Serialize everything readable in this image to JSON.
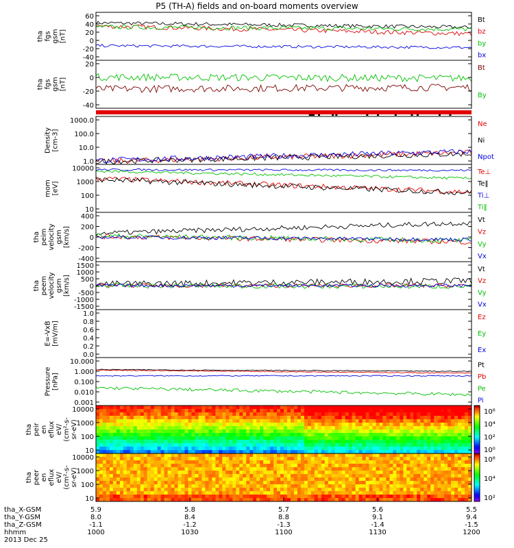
{
  "title": "P5 (TH-A) fields and on-board moments overview",
  "time_axis": {
    "rows": [
      {
        "label": "tha_X-GSM",
        "values": [
          "5.9",
          "5.8",
          "5.7",
          "5.6",
          "5.5"
        ]
      },
      {
        "label": "tha_Y-GSM",
        "values": [
          "8.0",
          "8.4",
          "8.8",
          "9.1",
          "9.4"
        ]
      },
      {
        "label": "tha_Z-GSM",
        "values": [
          "-1.1",
          "-1.2",
          "-1.3",
          "-1.4",
          "-1.5"
        ]
      },
      {
        "label": "hhmm",
        "values": [
          "1000",
          "1030",
          "1100",
          "1130",
          "1200"
        ]
      }
    ],
    "date": "2013 Dec 25"
  },
  "colorbars": {
    "top_ticks": [
      "10⁶",
      "10⁴",
      "10²",
      "10⁰"
    ],
    "bottom_ticks": [
      "10⁶",
      "10⁴",
      "10²"
    ]
  },
  "chart_data": [
    {
      "type": "line",
      "ylabel": [
        "tha",
        "fgs",
        "gsm",
        "[nT]"
      ],
      "yticks": [
        "60",
        "40",
        "20",
        "0",
        "-20",
        "-40"
      ],
      "ylim": [
        -40,
        65
      ],
      "legend": [
        {
          "name": "Bt",
          "color": "#000000"
        },
        {
          "name": "bz",
          "color": "#e00000"
        },
        {
          "name": "by",
          "color": "#00c000"
        },
        {
          "name": "bx",
          "color": "#0000e0"
        }
      ],
      "series": [
        {
          "name": "Bt",
          "start": 42,
          "end": 32,
          "noise": 4
        },
        {
          "name": "bz",
          "start": 35,
          "end": 18,
          "noise": 5
        },
        {
          "name": "by",
          "start": 33,
          "end": 28,
          "noise": 5
        },
        {
          "name": "bx",
          "start": -8,
          "end": -12,
          "noise": 3
        }
      ]
    },
    {
      "type": "line",
      "ylabel": [
        "tha",
        "fgs",
        "gsm",
        "[nT]"
      ],
      "yticks": [
        "20",
        "0",
        "-20",
        "-40"
      ],
      "ylim": [
        -50,
        30
      ],
      "legend": [
        {
          "name": "Bt",
          "color": "#7a0000"
        },
        {
          "name": "By",
          "color": "#00c000"
        }
      ],
      "series": [
        {
          "name": "Bt",
          "start": -18,
          "end": -15,
          "noise": 6
        },
        {
          "name": "By",
          "start": 2,
          "end": 0,
          "noise": 6
        }
      ]
    },
    {
      "type": "bar",
      "ylabel": [],
      "yticks": [],
      "legend": [],
      "series": []
    },
    {
      "type": "line",
      "ylabel": [
        "Density",
        "[cm-3]"
      ],
      "yticks": [
        "1000.0",
        "100.0",
        "10.0",
        "1.0"
      ],
      "ylim": [
        0.3,
        1500
      ],
      "log": true,
      "legend": [
        {
          "name": "Ne",
          "color": "#e00000"
        },
        {
          "name": "Ni",
          "color": "#000000"
        },
        {
          "name": "Npot",
          "color": "#0000e0"
        }
      ],
      "series": [
        {
          "name": "Ne",
          "start": 0.5,
          "end": 2.5,
          "noise": 0.5
        },
        {
          "name": "Ni",
          "start": 0.5,
          "end": 2.0,
          "noise": 0.5
        },
        {
          "name": "Npot",
          "start": 0.6,
          "end": 3.0,
          "noise": 0.5
        }
      ]
    },
    {
      "type": "line",
      "ylabel": [
        "mom",
        "[eV]"
      ],
      "yticks": [
        "10000",
        "1000",
        "100",
        "10"
      ],
      "ylim": [
        10,
        12000
      ],
      "log": true,
      "legend": [
        {
          "name": "Te⊥",
          "color": "#e00000"
        },
        {
          "name": "Te‖",
          "color": "#000000"
        },
        {
          "name": "Ti⊥",
          "color": "#0000e0"
        },
        {
          "name": "Ti‖",
          "color": "#00c000"
        }
      ],
      "series": [
        {
          "name": "Te⊥",
          "start": 1500,
          "end": 200,
          "noise": 0.4
        },
        {
          "name": "Te‖",
          "start": 1300,
          "end": 180,
          "noise": 0.4
        },
        {
          "name": "Ti⊥",
          "start": 5500,
          "end": 5000,
          "noise": 0.15
        },
        {
          "name": "Ti‖",
          "start": 4500,
          "end": 1500,
          "noise": 0.2
        }
      ]
    },
    {
      "type": "line",
      "ylabel": [
        "tha",
        "peim",
        "velocity",
        "gsm",
        "[km/s]"
      ],
      "yticks": [
        "400",
        "200",
        "0",
        "-200",
        "-400"
      ],
      "ylim": [
        -400,
        400
      ],
      "legend": [
        {
          "name": "Vt",
          "color": "#000000"
        },
        {
          "name": "Vz",
          "color": "#e00000"
        },
        {
          "name": "Vy",
          "color": "#00c000"
        },
        {
          "name": "Vx",
          "color": "#0000e0"
        }
      ],
      "series": [
        {
          "name": "Vt",
          "start": 60,
          "end": 230,
          "noise": 40
        },
        {
          "name": "Vz",
          "start": 10,
          "end": -80,
          "noise": 40
        },
        {
          "name": "Vy",
          "start": 20,
          "end": -60,
          "noise": 40
        },
        {
          "name": "Vx",
          "start": 0,
          "end": -40,
          "noise": 30
        }
      ]
    },
    {
      "type": "line",
      "ylabel": [
        "tha",
        "peem",
        "velocity",
        "gsm",
        "[km/s]"
      ],
      "yticks": [
        "1500",
        "1000",
        "500",
        "0",
        "-500",
        "-1000",
        "-1500"
      ],
      "ylim": [
        -1500,
        1500
      ],
      "legend": [
        {
          "name": "Vt",
          "color": "#000000"
        },
        {
          "name": "Vz",
          "color": "#e00000"
        },
        {
          "name": "Vy",
          "color": "#00c000"
        },
        {
          "name": "Vx",
          "color": "#0000e0"
        }
      ],
      "series": [
        {
          "name": "Vt",
          "start": 100,
          "end": 300,
          "noise": 200
        },
        {
          "name": "Vz",
          "start": 0,
          "end": 0,
          "noise": 120
        },
        {
          "name": "Vy",
          "start": 0,
          "end": -50,
          "noise": 150
        },
        {
          "name": "Vx",
          "start": 0,
          "end": 0,
          "noise": 100
        }
      ]
    },
    {
      "type": "line",
      "ylabel": [
        "E=-VxB",
        "[mV/m]"
      ],
      "yticks": [
        "1.0",
        "0.8",
        "0.6",
        "0.4",
        "0.2",
        "0.0"
      ],
      "ylim": [
        0,
        1
      ],
      "legend": [
        {
          "name": "Ez",
          "color": "#e00000"
        },
        {
          "name": "Ey",
          "color": "#00c000"
        },
        {
          "name": "Ex",
          "color": "#0000e0"
        }
      ],
      "series": []
    },
    {
      "type": "line",
      "ylabel": [
        "Pressure",
        "[nPa]"
      ],
      "yticks": [
        "10.000",
        "1.000",
        "0.100",
        "0.010",
        "0.001"
      ],
      "ylim": [
        0.001,
        10
      ],
      "log": true,
      "legend": [
        {
          "name": "Pt",
          "color": "#000000"
        },
        {
          "name": "Pb",
          "color": "#e00000"
        },
        {
          "name": "Pe",
          "color": "#00c000"
        },
        {
          "name": "Pi",
          "color": "#0000e0"
        }
      ],
      "series": [
        {
          "name": "Pt",
          "start": 1.0,
          "end": 0.7,
          "noise": 0.08
        },
        {
          "name": "Pb",
          "start": 0.9,
          "end": 0.5,
          "noise": 0.08
        },
        {
          "name": "Pe",
          "start": 0.03,
          "end": 0.008,
          "noise": 0.3
        },
        {
          "name": "Pi",
          "start": 0.3,
          "end": 0.3,
          "noise": 0.1
        }
      ]
    },
    {
      "type": "heatmap",
      "ylabel": [
        "tha",
        "peir",
        "en",
        "eflux",
        "eV/",
        "(cm²-s-",
        "sr-eV)"
      ],
      "yticks": [
        "10000",
        "1000",
        "100",
        "10"
      ],
      "ylim": [
        5,
        30000
      ],
      "log": true,
      "legend": [],
      "series": []
    },
    {
      "type": "heatmap",
      "ylabel": [
        "tha",
        "peer",
        "en",
        "eflux",
        "eV/",
        "(cm²-s-",
        "sr-eV)"
      ],
      "yticks": [
        "10000",
        "1000",
        "100",
        "10"
      ],
      "ylim": [
        5,
        30000
      ],
      "log": true,
      "legend": [],
      "series": []
    }
  ]
}
